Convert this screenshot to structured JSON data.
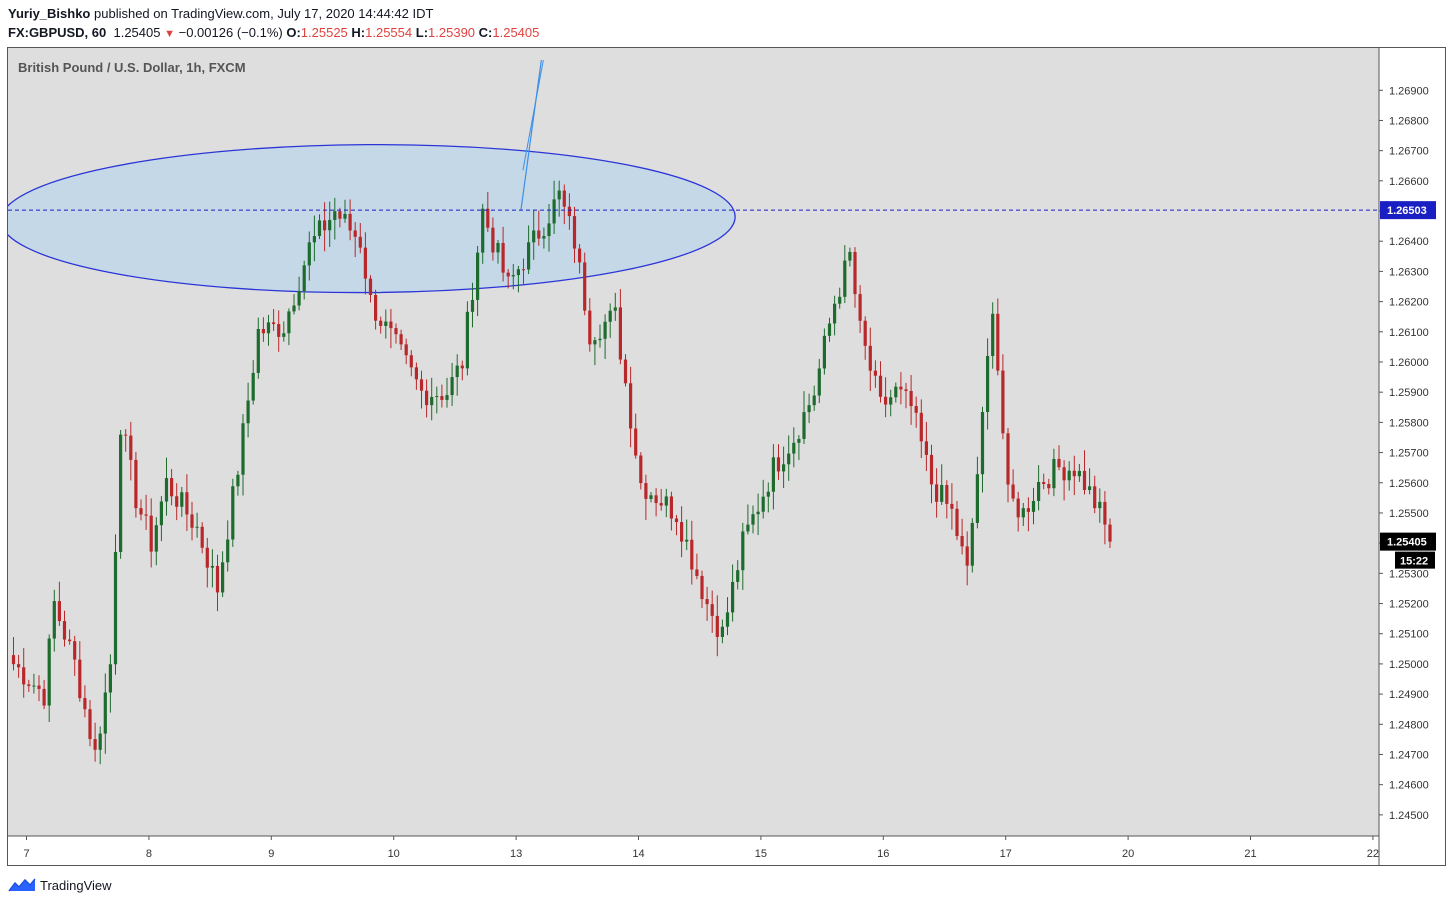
{
  "header": {
    "author": "Yuriy_Bishko",
    "published_text": "published on TradingView.com, July 17, 2020 14:44:42 IDT",
    "symbol": "FX:GBPUSD, 60",
    "last": "1.25405",
    "change": "−0.00126 (−0.1%)",
    "o_label": "O:",
    "o_value": "1.25525",
    "h_label": "H:",
    "h_value": "1.25554",
    "l_label": "L:",
    "l_value": "1.25390",
    "c_label": "C:",
    "c_value": "1.25405"
  },
  "legend": {
    "title": "British Pound / U.S. Dollar, 1h, FXCM"
  },
  "footer": {
    "brand": "TradingView"
  },
  "colors": {
    "plot_bg": "#dedede",
    "up": "#1e6b2e",
    "down": "#b8282a",
    "ellipse_fill": "#c2d7e8",
    "ellipse_stroke": "#2b35d6",
    "hline": "#1a1fc4",
    "price_tag_blue": "#1a1fc4",
    "price_tag_black": "#000000",
    "trendline": "#3d8fe8"
  },
  "chart_data": {
    "type": "candlestick",
    "y_ticks": [
      "1.26900",
      "1.26800",
      "1.26700",
      "1.26600",
      "1.26500",
      "1.26400",
      "1.26300",
      "1.26200",
      "1.26100",
      "1.26000",
      "1.25900",
      "1.25800",
      "1.25700",
      "1.25600",
      "1.25500",
      "1.25400",
      "1.25300",
      "1.25200",
      "1.25100",
      "1.25000",
      "1.24900",
      "1.24800",
      "1.24700",
      "1.24600",
      "1.24500"
    ],
    "ylim": [
      1.2443,
      1.2704
    ],
    "x_ticks": [
      "7",
      "8",
      "9",
      "10",
      "13",
      "14",
      "15",
      "16",
      "17",
      "20",
      "21",
      "22"
    ],
    "x_tick_index": [
      0,
      24,
      48,
      72,
      96,
      120,
      144,
      168,
      192,
      216,
      240,
      264
    ],
    "bars_count": 270,
    "horizontal_line": {
      "price": 1.26503,
      "label": "1.26503"
    },
    "last_price": {
      "price": 1.25405,
      "label": "1.25405",
      "countdown": "15:22"
    },
    "ellipse": {
      "center_index": 69.5,
      "center_price": 1.26475,
      "half_width_bars": 72,
      "half_height_price": 0.00245
    },
    "trendline": {
      "from": {
        "index": 99.5,
        "price": 1.26503
      },
      "to": {
        "index": 103.5,
        "price": 1.27
      }
    },
    "anchors": [
      [
        0,
        1.25
      ],
      [
        6,
        1.249
      ],
      [
        8,
        1.252
      ],
      [
        12,
        1.25
      ],
      [
        16,
        1.247
      ],
      [
        19,
        1.25
      ],
      [
        21,
        1.258
      ],
      [
        24,
        1.2555
      ],
      [
        27,
        1.254
      ],
      [
        30,
        1.256
      ],
      [
        36,
        1.2545
      ],
      [
        40,
        1.2525
      ],
      [
        44,
        1.2565
      ],
      [
        48,
        1.261
      ],
      [
        53,
        1.2612
      ],
      [
        58,
        1.2638
      ],
      [
        63,
        1.265
      ],
      [
        68,
        1.264
      ],
      [
        70,
        1.262
      ],
      [
        75,
        1.2605
      ],
      [
        80,
        1.259
      ],
      [
        85,
        1.259
      ],
      [
        88,
        1.26
      ],
      [
        92,
        1.265
      ],
      [
        97,
        1.2625
      ],
      [
        102,
        1.264
      ],
      [
        107,
        1.2655
      ],
      [
        110,
        1.264
      ],
      [
        113,
        1.261
      ],
      [
        118,
        1.2615
      ],
      [
        123,
        1.256
      ],
      [
        130,
        1.255
      ],
      [
        136,
        1.252
      ],
      [
        139,
        1.251
      ],
      [
        143,
        1.254
      ],
      [
        149,
        1.2565
      ],
      [
        153,
        1.2575
      ],
      [
        157,
        1.259
      ],
      [
        161,
        1.262
      ],
      [
        164,
        1.2635
      ],
      [
        166,
        1.261
      ],
      [
        170,
        1.2585
      ],
      [
        173,
        1.259
      ],
      [
        176,
        1.2585
      ],
      [
        180,
        1.256
      ],
      [
        184,
        1.255
      ],
      [
        187,
        1.253
      ],
      [
        190,
        1.258
      ],
      [
        192,
        1.262
      ],
      [
        195,
        1.2555
      ],
      [
        198,
        1.255
      ],
      [
        201,
        1.256
      ],
      [
        205,
        1.2565
      ],
      [
        208,
        1.2565
      ],
      [
        210,
        1.256
      ],
      [
        213,
        1.255
      ],
      [
        215,
        1.25405
      ]
    ],
    "last_index": 215
  }
}
